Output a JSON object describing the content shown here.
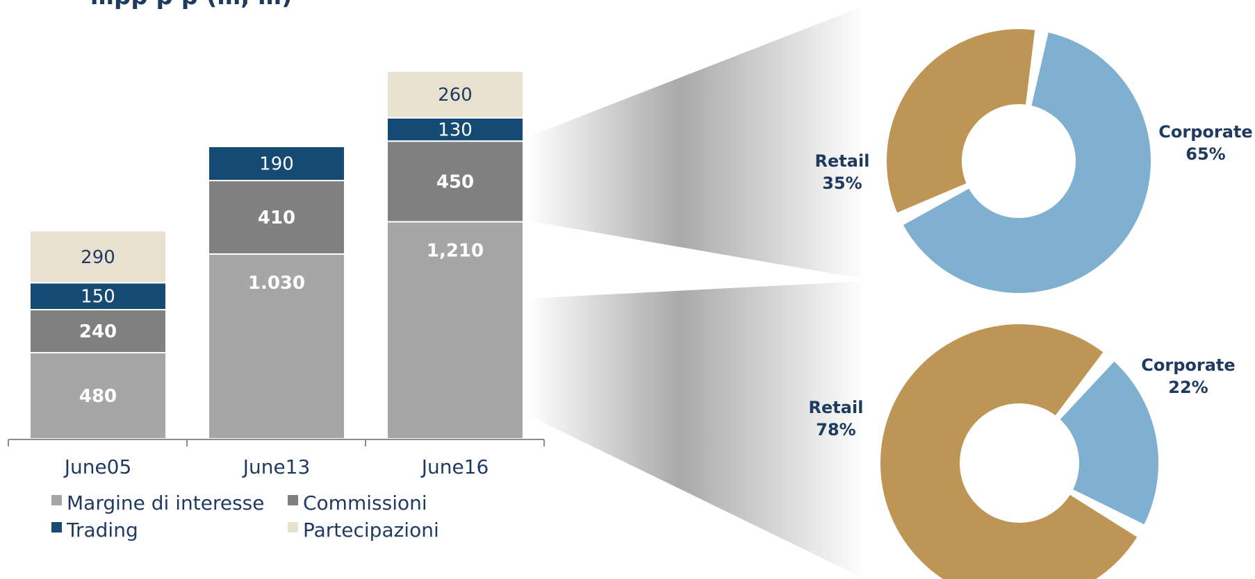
{
  "title_fragment": "…pp p p (…, …)",
  "chart_data": [
    {
      "type": "bar",
      "stacked": true,
      "categories": [
        "June05",
        "June13",
        "June16"
      ],
      "series": [
        {
          "name": "Margine di interesse",
          "color": "#a6a6a6",
          "values": [
            480,
            1030,
            1210
          ],
          "labels": [
            "480",
            "1.030",
            "1,210"
          ]
        },
        {
          "name": "Commissioni",
          "color": "#808080",
          "values": [
            240,
            410,
            450
          ],
          "labels": [
            "240",
            "410",
            "450"
          ]
        },
        {
          "name": "Trading",
          "color": "#154a72",
          "values": [
            150,
            190,
            130
          ],
          "labels": [
            "150",
            "190",
            "130"
          ]
        },
        {
          "name": "Partecipazioni",
          "color": "#e8e1d0",
          "values": [
            290,
            0,
            260
          ],
          "labels": [
            "290",
            "",
            "260"
          ]
        }
      ],
      "legend_position": "bottom",
      "grid": false
    },
    {
      "type": "pie",
      "style": "donut",
      "slices": [
        {
          "name": "Corporate",
          "value": 65,
          "label": "65%",
          "color": "#80b0cf"
        },
        {
          "name": "Retail",
          "value": 35,
          "label": "35%",
          "color": "#bd9555"
        }
      ]
    },
    {
      "type": "pie",
      "style": "donut",
      "slices": [
        {
          "name": "Corporate",
          "value": 22,
          "label": "22%",
          "color": "#80b0cf"
        },
        {
          "name": "Retail",
          "value": 78,
          "label": "78%",
          "color": "#bd9555"
        }
      ]
    }
  ]
}
